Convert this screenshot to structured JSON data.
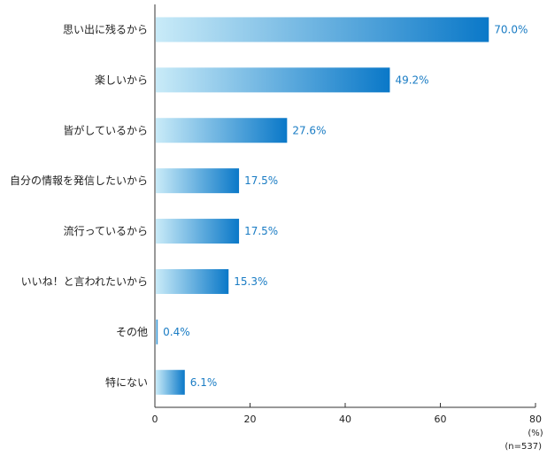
{
  "chart_data": {
    "type": "bar",
    "orientation": "horizontal",
    "categories": [
      "思い出に残るから",
      "楽しいから",
      "皆がしているから",
      "自分の情報を発信したいから",
      "流行っているから",
      "いいね！と言われたいから",
      "その他",
      "特にない"
    ],
    "values": [
      70.0,
      49.2,
      27.6,
      17.5,
      17.5,
      15.3,
      0.4,
      6.1
    ],
    "value_labels": [
      "70.0%",
      "49.2%",
      "27.6%",
      "17.5%",
      "17.5%",
      "15.3%",
      "0.4%",
      "6.1%"
    ],
    "xlim": [
      0,
      80
    ],
    "xticks": [
      0,
      20,
      40,
      60,
      80
    ],
    "unit": "(%)",
    "sample_size": "(n=537)",
    "grid": false,
    "colors": {
      "bar_start": "#c9ebf8",
      "bar_end": "#0a78c8",
      "value_text": "#1a7cc4",
      "axis": "#333333"
    }
  }
}
